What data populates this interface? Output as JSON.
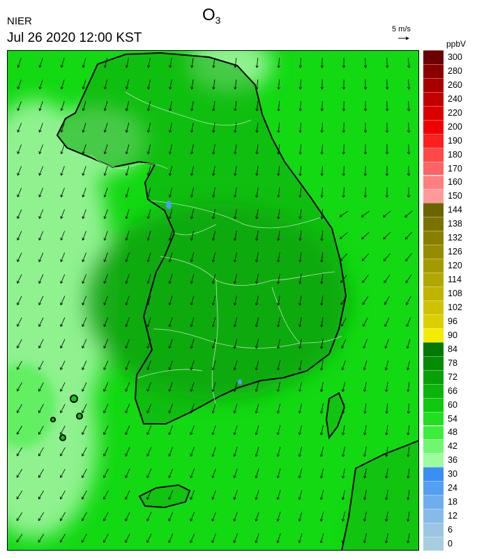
{
  "header": {
    "agency": "NIER",
    "datetime": "Jul 26 2020 12:00 KST",
    "title": "O",
    "title_subscript": "3"
  },
  "wind_scale": {
    "label": "5 m/s"
  },
  "colorbar": {
    "unit": "ppbV",
    "levels": [
      "0",
      "6",
      "12",
      "18",
      "24",
      "30",
      "36",
      "42",
      "48",
      "54",
      "60",
      "66",
      "72",
      "78",
      "84",
      "90",
      "96",
      "102",
      "108",
      "114",
      "120",
      "126",
      "132",
      "138",
      "144",
      "150",
      "160",
      "170",
      "180",
      "190",
      "200",
      "220",
      "240",
      "260",
      "280",
      "300"
    ],
    "colors": [
      "#a9cde0",
      "#9cc5e3",
      "#86bbe9",
      "#6eaeee",
      "#549ff2",
      "#3a8ff5",
      "#9dfc9d",
      "#6ff86f",
      "#3aee3a",
      "#1ee01e",
      "#10c810",
      "#0ab40a",
      "#07a007",
      "#058c05",
      "#037803",
      "#f3ec00",
      "#dccf00",
      "#cfc200",
      "#c0b400",
      "#b2a700",
      "#a49a00",
      "#968c00",
      "#887f00",
      "#7a7200",
      "#6b6500",
      "#ff9a9a",
      "#ff7f7f",
      "#ff6464",
      "#ff4848",
      "#ff1f1f",
      "#f00000",
      "#db0000",
      "#c20000",
      "#a80000",
      "#8a0000",
      "#6a0000"
    ]
  },
  "map": {
    "sea_color": "#12d912",
    "land_color": "#10c410",
    "inland_dark_color": "#0aa20a",
    "coastal_light_color": "#62ef62",
    "far_light_color": "#8ff28f",
    "low_spot_color": "#4f9cf0",
    "coast_color": "#000000",
    "boundary_color": "#b7e6b7"
  }
}
